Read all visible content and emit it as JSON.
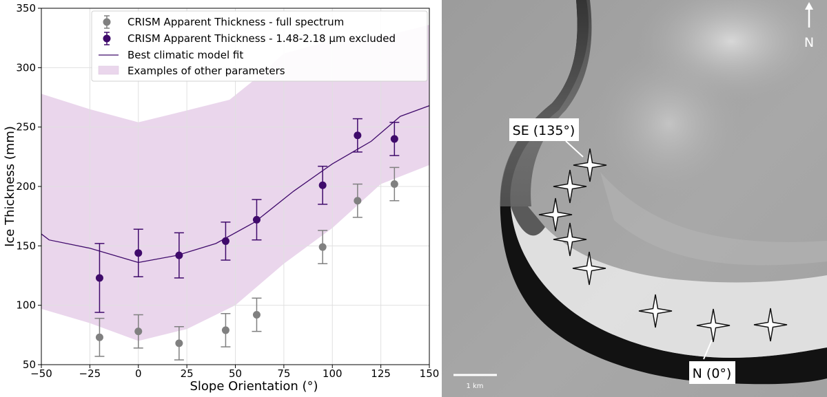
{
  "chart_data": {
    "type": "scatter",
    "xlabel": "Slope  Orientation (°)",
    "ylabel": "Ice Thickness (mm)",
    "xlim": [
      -50,
      150
    ],
    "ylim": [
      50,
      350
    ],
    "xticks": [
      -50,
      -25,
      0,
      25,
      50,
      75,
      100,
      125,
      150
    ],
    "yticks": [
      50,
      100,
      150,
      200,
      250,
      300,
      350
    ],
    "grid": true,
    "legend_position": "top",
    "colors": {
      "full_spectrum": "#808080",
      "excluded": "#3f0a6b",
      "model": "#3f0a6b",
      "band": "#ead6ec"
    },
    "series": [
      {
        "name": "CRISM Apparent Thickness - full spectrum",
        "kind": "errorbar",
        "points": [
          {
            "x": -20,
            "y": 73,
            "err": 16
          },
          {
            "x": 0,
            "y": 78,
            "err": 14
          },
          {
            "x": 21,
            "y": 68,
            "err": 14
          },
          {
            "x": 45,
            "y": 79,
            "err": 14
          },
          {
            "x": 61,
            "y": 92,
            "err": 14
          },
          {
            "x": 95,
            "y": 149,
            "err": 14
          },
          {
            "x": 113,
            "y": 188,
            "err": 14
          },
          {
            "x": 132,
            "y": 202,
            "err": 14
          }
        ]
      },
      {
        "name": "CRISM Apparent Thickness - 1.48-2.18 µm excluded",
        "kind": "errorbar",
        "points": [
          {
            "x": -20,
            "y": 123,
            "err": 29
          },
          {
            "x": 0,
            "y": 144,
            "err": 20
          },
          {
            "x": 21,
            "y": 142,
            "err": 19
          },
          {
            "x": 45,
            "y": 154,
            "err": 16
          },
          {
            "x": 61,
            "y": 172,
            "err": 17
          },
          {
            "x": 95,
            "y": 201,
            "err": 16
          },
          {
            "x": 113,
            "y": 243,
            "err": 14
          },
          {
            "x": 132,
            "y": 240,
            "err": 14
          }
        ]
      },
      {
        "name": "Best climatic model fit",
        "kind": "line",
        "points": [
          {
            "x": -50,
            "y": 160
          },
          {
            "x": -46,
            "y": 155
          },
          {
            "x": -25,
            "y": 148
          },
          {
            "x": 0,
            "y": 136
          },
          {
            "x": 20,
            "y": 142
          },
          {
            "x": 40,
            "y": 152
          },
          {
            "x": 60,
            "y": 170
          },
          {
            "x": 80,
            "y": 196
          },
          {
            "x": 100,
            "y": 219
          },
          {
            "x": 120,
            "y": 238
          },
          {
            "x": 135,
            "y": 259
          },
          {
            "x": 150,
            "y": 268
          }
        ]
      },
      {
        "name": "Examples of other parameters",
        "kind": "band",
        "upper": [
          {
            "x": -50,
            "y": 278
          },
          {
            "x": -25,
            "y": 265
          },
          {
            "x": 0,
            "y": 254
          },
          {
            "x": 25,
            "y": 264
          },
          {
            "x": 47,
            "y": 273
          },
          {
            "x": 60,
            "y": 290
          },
          {
            "x": 75,
            "y": 312
          },
          {
            "x": 100,
            "y": 323
          },
          {
            "x": 125,
            "y": 326
          },
          {
            "x": 150,
            "y": 336
          }
        ],
        "lower": [
          {
            "x": -50,
            "y": 97
          },
          {
            "x": -25,
            "y": 85
          },
          {
            "x": 0,
            "y": 70
          },
          {
            "x": 25,
            "y": 80
          },
          {
            "x": 50,
            "y": 100
          },
          {
            "x": 75,
            "y": 135
          },
          {
            "x": 100,
            "y": 165
          },
          {
            "x": 125,
            "y": 202
          },
          {
            "x": 150,
            "y": 218
          }
        ]
      }
    ]
  },
  "image_panel": {
    "description_free": true,
    "labels": {
      "se_label": "SE (135°)",
      "n_label": "N (0°)",
      "compass_label": "N",
      "scale_label": "1 km"
    },
    "icons": [
      "north-arrow-icon",
      "star-marker-icon"
    ],
    "star_marker_count": 8
  }
}
